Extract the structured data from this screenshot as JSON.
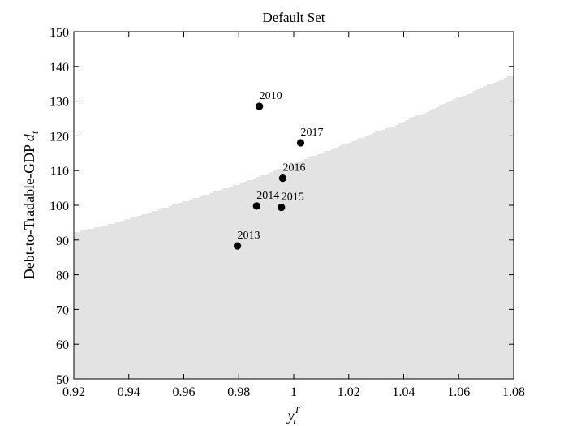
{
  "chart_data": {
    "type": "scatter",
    "title": "Default Set",
    "xlabel": {
      "base": "y",
      "sub": "t",
      "sup": "T"
    },
    "ylabel": {
      "text": "Debt-to-Tradable-GDP ",
      "var": "d",
      "sub": "t"
    },
    "xlim": [
      0.92,
      1.08
    ],
    "ylim": [
      50,
      150
    ],
    "x_ticks": [
      0.92,
      0.94,
      0.96,
      0.98,
      1,
      1.02,
      1.04,
      1.06,
      1.08
    ],
    "x_tick_labels": [
      "0.92",
      "0.94",
      "0.96",
      "0.98",
      "1",
      "1.02",
      "1.04",
      "1.06",
      "1.08"
    ],
    "y_ticks": [
      50,
      60,
      70,
      80,
      90,
      100,
      110,
      120,
      130,
      140,
      150
    ],
    "y_tick_labels": [
      "50",
      "60",
      "70",
      "80",
      "90",
      "100",
      "110",
      "120",
      "130",
      "140",
      "150"
    ],
    "grid": false,
    "default_region": {
      "color": "#e3e3e3",
      "boundary_x": [
        0.92,
        0.94,
        0.96,
        0.98,
        1.0,
        1.02,
        1.04,
        1.06,
        1.075,
        1.08
      ],
      "boundary_y": [
        92,
        96,
        101,
        106,
        112,
        118,
        124,
        131,
        136,
        137.5
      ]
    },
    "points": [
      {
        "label": "2010",
        "x": 0.9875,
        "y": 128.5
      },
      {
        "label": "2017",
        "x": 1.0025,
        "y": 118
      },
      {
        "label": "2016",
        "x": 0.996,
        "y": 107.8
      },
      {
        "label": "2014",
        "x": 0.9865,
        "y": 99.8
      },
      {
        "label": "2015",
        "x": 0.9955,
        "y": 99.4
      },
      {
        "label": "2013",
        "x": 0.9795,
        "y": 88.3
      }
    ]
  }
}
